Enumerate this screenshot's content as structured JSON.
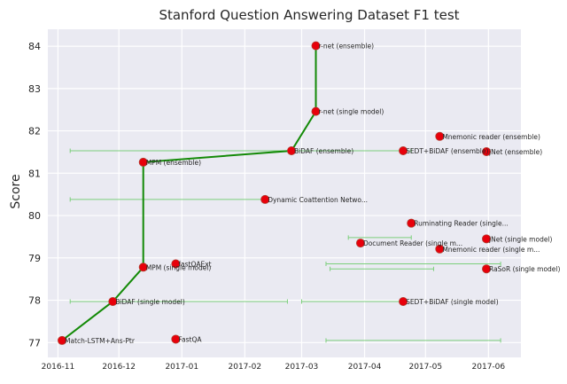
{
  "chart_data": {
    "type": "scatter",
    "title": "Stanford Question Answering Dataset F1 test",
    "xlabel": "",
    "ylabel": "Score",
    "x_type": "date",
    "xlim": [
      "2016-10-27",
      "2017-06-17"
    ],
    "ylim": [
      76.65,
      84.4
    ],
    "x_ticks": [
      {
        "value": "2016-11-01",
        "label": "2016-11"
      },
      {
        "value": "2016-12-01",
        "label": "2016-12"
      },
      {
        "value": "2017-01-01",
        "label": "2017-01"
      },
      {
        "value": "2017-02-01",
        "label": "2017-02"
      },
      {
        "value": "2017-03-01",
        "label": "2017-03"
      },
      {
        "value": "2017-04-01",
        "label": "2017-04"
      },
      {
        "value": "2017-05-01",
        "label": "2017-05"
      },
      {
        "value": "2017-06-01",
        "label": "2017-06"
      }
    ],
    "y_ticks": [
      77,
      78,
      79,
      80,
      81,
      82,
      83,
      84
    ],
    "grid": true,
    "colors": {
      "background": "#eaeaf2",
      "grid": "#ffffff",
      "point": "#e8000b",
      "point_edge": "#b03a2e",
      "frontier": "#138a07",
      "errorbar": "#7ccf7c"
    },
    "points": [
      {
        "label": "Match-LSTM+Ans-Ptr",
        "x": "2016-11-03",
        "y": 77.05
      },
      {
        "label": "BiDAF (single model)",
        "x": "2016-11-28",
        "y": 77.97
      },
      {
        "label": "MPM (single model)",
        "x": "2016-12-13",
        "y": 78.78
      },
      {
        "label": "fastQAExt",
        "x": "2016-12-29",
        "y": 78.86
      },
      {
        "label": "FastQA",
        "x": "2016-12-29",
        "y": 77.08
      },
      {
        "label": "MPM (ensemble)",
        "x": "2016-12-13",
        "y": 81.26
      },
      {
        "label": "Dynamic Coattention Netwo...",
        "x": "2017-02-11",
        "y": 80.38
      },
      {
        "label": "BiDAF (ensemble)",
        "x": "2017-02-24",
        "y": 81.53
      },
      {
        "label": "r-net (single model)",
        "x": "2017-03-08",
        "y": 82.46
      },
      {
        "label": "r-net (ensemble)",
        "x": "2017-03-08",
        "y": 84.01
      },
      {
        "label": "SEDT+BiDAF (ensemble)",
        "x": "2017-04-20",
        "y": 81.53
      },
      {
        "label": "SEDT+BiDAF (single model)",
        "x": "2017-04-20",
        "y": 77.97
      },
      {
        "label": "Ruminating Reader (single...",
        "x": "2017-04-24",
        "y": 79.82
      },
      {
        "label": "Document Reader (single m...",
        "x": "2017-03-30",
        "y": 79.35
      },
      {
        "label": "Mnemonic reader (ensemble)",
        "x": "2017-05-08",
        "y": 81.87
      },
      {
        "label": "Mnemonic reader (single m...",
        "x": "2017-05-08",
        "y": 79.21
      },
      {
        "label": "jNet (ensemble)",
        "x": "2017-05-31",
        "y": 81.51
      },
      {
        "label": "jNet (single model)",
        "x": "2017-05-31",
        "y": 79.45
      },
      {
        "label": "RaSoR (single model)",
        "x": "2017-05-31",
        "y": 78.74
      }
    ],
    "frontier": [
      {
        "x": "2016-11-03",
        "y": 77.05
      },
      {
        "x": "2016-11-28",
        "y": 77.97
      },
      {
        "x": "2016-12-13",
        "y": 78.78
      },
      {
        "x": "2016-12-13",
        "y": 81.26
      },
      {
        "x": "2017-02-24",
        "y": 81.53
      },
      {
        "x": "2017-03-08",
        "y": 82.46
      },
      {
        "x": "2017-03-08",
        "y": 84.01
      }
    ],
    "error_bars": [
      {
        "x_from": "2016-11-07",
        "x_to": "2017-04-24",
        "y": 81.53
      },
      {
        "x_from": "2016-11-07",
        "x_to": "2017-02-11",
        "y": 80.38
      },
      {
        "x_from": "2017-03-24",
        "x_to": "2017-04-24",
        "y": 79.48
      },
      {
        "x_from": "2017-03-13",
        "x_to": "2017-06-07",
        "y": 78.86
      },
      {
        "x_from": "2017-03-15",
        "x_to": "2017-05-05",
        "y": 78.74
      },
      {
        "x_from": "2016-11-07",
        "x_to": "2017-02-22",
        "y": 77.97
      },
      {
        "x_from": "2017-03-01",
        "x_to": "2017-04-21",
        "y": 77.97
      },
      {
        "x_from": "2017-03-13",
        "x_to": "2017-06-07",
        "y": 77.05
      }
    ]
  }
}
